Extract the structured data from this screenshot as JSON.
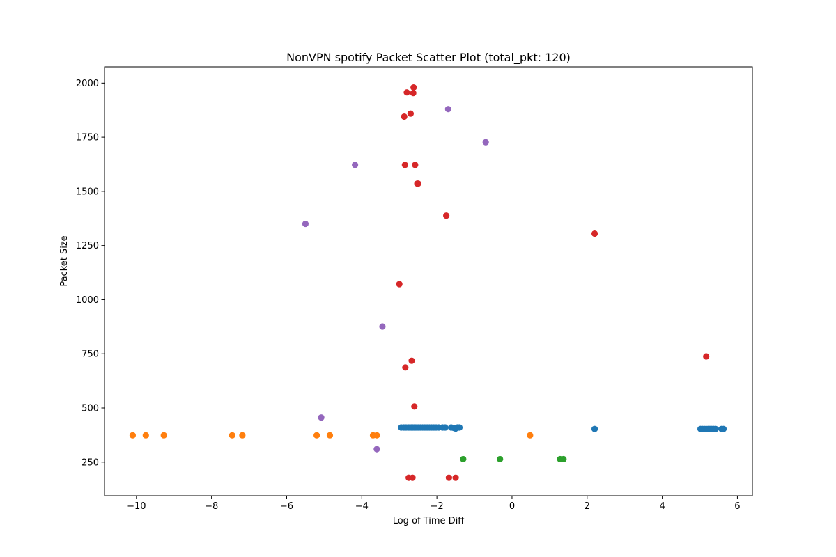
{
  "chart_data": {
    "type": "scatter",
    "title": "NonVPN spotify Packet Scatter Plot (total_pkt: 120)",
    "xlabel": "Log of Time Diff",
    "ylabel": "Packet Size",
    "xlim": [
      -10.85,
      6.4
    ],
    "ylim": [
      95,
      2075
    ],
    "xticks": [
      -10,
      -8,
      -6,
      -4,
      -2,
      0,
      2,
      4,
      6
    ],
    "xtick_labels": [
      "−10",
      "−8",
      "−6",
      "−4",
      "−2",
      "0",
      "2",
      "4",
      "6"
    ],
    "yticks": [
      250,
      500,
      750,
      1000,
      1250,
      1500,
      1750,
      2000
    ],
    "ytick_labels": [
      "250",
      "500",
      "750",
      "1000",
      "1250",
      "1500",
      "1750",
      "2000"
    ],
    "grid": false,
    "series": [
      {
        "color": "#1f77b4",
        "points": [
          [
            -2.95,
            410
          ],
          [
            -2.88,
            410
          ],
          [
            -2.82,
            410
          ],
          [
            -2.76,
            410
          ],
          [
            -2.72,
            410
          ],
          [
            -2.68,
            410
          ],
          [
            -2.64,
            410
          ],
          [
            -2.6,
            410
          ],
          [
            -2.56,
            410
          ],
          [
            -2.5,
            410
          ],
          [
            -2.44,
            410
          ],
          [
            -2.38,
            410
          ],
          [
            -2.32,
            410
          ],
          [
            -2.26,
            410
          ],
          [
            -2.2,
            410
          ],
          [
            -2.14,
            410
          ],
          [
            -2.08,
            410
          ],
          [
            -2.02,
            410
          ],
          [
            -1.95,
            410
          ],
          [
            -1.85,
            410
          ],
          [
            -1.78,
            410
          ],
          [
            -1.62,
            410
          ],
          [
            -1.55,
            408
          ],
          [
            -1.5,
            405
          ],
          [
            -1.45,
            410
          ],
          [
            -1.4,
            410
          ],
          [
            2.2,
            403
          ],
          [
            5.02,
            403
          ],
          [
            5.07,
            403
          ],
          [
            5.12,
            403
          ],
          [
            5.17,
            403
          ],
          [
            5.22,
            403
          ],
          [
            5.27,
            403
          ],
          [
            5.32,
            403
          ],
          [
            5.37,
            403
          ],
          [
            5.42,
            403
          ],
          [
            5.58,
            403
          ],
          [
            5.63,
            403
          ]
        ]
      },
      {
        "color": "#ff7f0e",
        "points": [
          [
            -10.1,
            374
          ],
          [
            -9.75,
            374
          ],
          [
            -9.27,
            374
          ],
          [
            -7.45,
            374
          ],
          [
            -7.18,
            374
          ],
          [
            -5.2,
            374
          ],
          [
            -4.85,
            374
          ],
          [
            -3.7,
            374
          ],
          [
            -3.6,
            374
          ],
          [
            0.48,
            374
          ]
        ]
      },
      {
        "color": "#2ca02c",
        "points": [
          [
            -1.3,
            264
          ],
          [
            -0.32,
            264
          ],
          [
            1.28,
            264
          ],
          [
            1.37,
            264
          ]
        ]
      },
      {
        "color": "#d62728",
        "points": [
          [
            -2.62,
            1980
          ],
          [
            -2.8,
            1957
          ],
          [
            -2.63,
            1954
          ],
          [
            -2.7,
            1859
          ],
          [
            -2.87,
            1845
          ],
          [
            -2.85,
            1622
          ],
          [
            -2.58,
            1622
          ],
          [
            -2.52,
            1536
          ],
          [
            -2.5,
            1536
          ],
          [
            -1.75,
            1388
          ],
          [
            2.2,
            1305
          ],
          [
            -3.0,
            1072
          ],
          [
            -2.67,
            718
          ],
          [
            -2.84,
            687
          ],
          [
            5.17,
            738
          ],
          [
            -2.6,
            507
          ],
          [
            -2.75,
            178
          ],
          [
            -2.65,
            178
          ],
          [
            -1.68,
            178
          ],
          [
            -1.5,
            178
          ]
        ]
      },
      {
        "color": "#9467bd",
        "points": [
          [
            -1.7,
            1880
          ],
          [
            -0.7,
            1727
          ],
          [
            -4.18,
            1622
          ],
          [
            -5.5,
            1350
          ],
          [
            -3.45,
            876
          ],
          [
            -5.08,
            456
          ],
          [
            -3.6,
            310
          ]
        ]
      }
    ]
  }
}
